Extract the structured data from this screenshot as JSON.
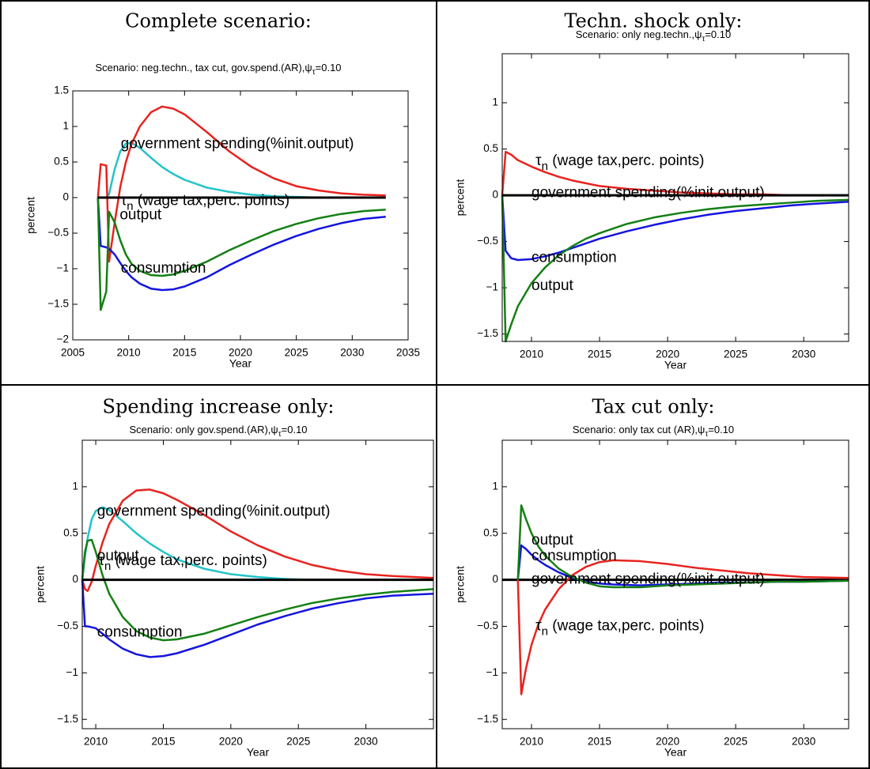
{
  "chart_data": [
    {
      "type": "line",
      "title": "Complete scenario:",
      "subtitle": {
        "text": "Scenario: neg.techn., tax cut, gov.spend.(AR),ψ",
        "subscript": "τ",
        "suffix": "=0.10"
      },
      "xlabel": "Year",
      "ylabel": "percent",
      "xlim": [
        2005,
        2035
      ],
      "xticks": [
        2005,
        2010,
        2015,
        2020,
        2025,
        2030,
        2035
      ],
      "ylim": [
        -2,
        1.5
      ],
      "yticks": [
        {
          "value": -2,
          "label": "−2"
        },
        {
          "value": -1.5,
          "label": "−1.5"
        },
        {
          "value": -1,
          "label": "−1"
        },
        {
          "value": -0.5,
          "label": "−0.5"
        },
        0,
        0.5,
        1,
        1.5
      ],
      "x": [
        2007.25,
        2007.5,
        2007.75,
        2008,
        2008.25,
        2008.75,
        2009.25,
        2009.75,
        2010.25,
        2011,
        2012,
        2013,
        2014,
        2015,
        2017,
        2019,
        2021,
        2023,
        2025,
        2027,
        2029,
        2031,
        2033
      ],
      "series": [
        {
          "color": "#22c3c8",
          "values": [
            0,
            0,
            0,
            0,
            0.05,
            0.4,
            0.65,
            0.76,
            0.77,
            0.7,
            0.56,
            0.43,
            0.33,
            0.25,
            0.14,
            0.08,
            0.04,
            0.02,
            0.01,
            0,
            0,
            0,
            0
          ]
        },
        {
          "color": "#e8231e",
          "values": [
            0,
            0.47,
            0.46,
            0.45,
            -0.9,
            -0.35,
            0.15,
            0.5,
            0.75,
            1.0,
            1.2,
            1.28,
            1.25,
            1.17,
            0.92,
            0.65,
            0.43,
            0.27,
            0.16,
            0.1,
            0.06,
            0.04,
            0.03
          ]
        },
        {
          "color": "#1414e0",
          "values": [
            0,
            -0.68,
            -0.69,
            -0.7,
            -0.72,
            -0.8,
            -0.92,
            -1.03,
            -1.12,
            -1.21,
            -1.28,
            -1.3,
            -1.29,
            -1.25,
            -1.12,
            -0.95,
            -0.8,
            -0.66,
            -0.54,
            -0.44,
            -0.36,
            -0.3,
            -0.27
          ]
        },
        {
          "color": "#148014",
          "values": [
            0,
            -1.58,
            -1.45,
            -1.32,
            -0.2,
            -0.35,
            -0.6,
            -0.8,
            -0.93,
            -1.03,
            -1.09,
            -1.1,
            -1.08,
            -1.03,
            -0.9,
            -0.74,
            -0.6,
            -0.47,
            -0.37,
            -0.29,
            -0.23,
            -0.19,
            -0.17
          ]
        },
        {
          "color": "#000000",
          "values": [
            0,
            0,
            0,
            0,
            0,
            0,
            0,
            0,
            0,
            0,
            0,
            0,
            0,
            0,
            0,
            0,
            0,
            0,
            0,
            0,
            0,
            0,
            0
          ]
        }
      ],
      "annotations": [
        {
          "text": "government spending(%init.output)",
          "x": 2009.3,
          "y": 0.75
        },
        {
          "text": "τ",
          "subscript": "n",
          "suffix": " (wage tax,perc. points)",
          "x": 2009.3,
          "y": -0.05
        },
        {
          "text": "output",
          "x": 2009.2,
          "y": -0.25
        },
        {
          "text": "consumption",
          "x": 2009.3,
          "y": -1.0
        }
      ]
    },
    {
      "type": "line",
      "title": "Techn. shock only:",
      "subtitle": {
        "text": "Scenario: only neg.techn.,ψ",
        "subscript": "τ",
        "suffix": "=0.10"
      },
      "xlabel": "Year",
      "ylabel": "percent",
      "xlim": [
        2007.85,
        2033.3
      ],
      "xticks": [
        2010,
        2015,
        2020,
        2025,
        2030
      ],
      "ylim": [
        -1.58,
        1.53
      ],
      "yticks": [
        {
          "value": -1.5,
          "label": "−1.5"
        },
        {
          "value": -1,
          "label": "−1"
        },
        {
          "value": -0.5,
          "label": "−0.5"
        },
        0,
        0.5,
        1
      ],
      "x": [
        2007.85,
        2008.1,
        2008.5,
        2009,
        2010,
        2011,
        2012,
        2013,
        2014,
        2015,
        2017,
        2019,
        2021,
        2023,
        2025,
        2027,
        2029,
        2031,
        2033.3
      ],
      "series": [
        {
          "color": "#e8231e",
          "values": [
            0,
            0.47,
            0.44,
            0.38,
            0.31,
            0.25,
            0.2,
            0.16,
            0.13,
            0.1,
            0.07,
            0.05,
            0.03,
            0.02,
            0.01,
            0.01,
            0,
            0,
            0
          ]
        },
        {
          "color": "#1414e0",
          "values": [
            0,
            -0.6,
            -0.68,
            -0.7,
            -0.69,
            -0.66,
            -0.62,
            -0.57,
            -0.52,
            -0.47,
            -0.39,
            -0.32,
            -0.26,
            -0.21,
            -0.17,
            -0.14,
            -0.11,
            -0.09,
            -0.07
          ]
        },
        {
          "color": "#148014",
          "values": [
            0,
            -1.58,
            -1.4,
            -1.2,
            -0.95,
            -0.78,
            -0.65,
            -0.55,
            -0.47,
            -0.41,
            -0.31,
            -0.24,
            -0.19,
            -0.15,
            -0.12,
            -0.1,
            -0.08,
            -0.06,
            -0.05
          ]
        },
        {
          "color": "#000000",
          "values": [
            0,
            0,
            0,
            0,
            0,
            0,
            0,
            0,
            0,
            0,
            0,
            0,
            0,
            0,
            0,
            0,
            0,
            0,
            0
          ]
        }
      ],
      "annotations": [
        {
          "text": "τ",
          "subscript": "n",
          "suffix": " (wage tax,perc. points)",
          "x": 2010.3,
          "y": 0.37
        },
        {
          "text": "government spending(%init.output)",
          "x": 2010,
          "y": 0.02
        },
        {
          "text": "consumption",
          "x": 2010,
          "y": -0.68
        },
        {
          "text": "output",
          "x": 2010,
          "y": -0.98
        }
      ]
    },
    {
      "type": "line",
      "title": "Spending increase only:",
      "subtitle": {
        "text": "Scenario: only gov.spend.(AR),ψ",
        "subscript": "τ",
        "suffix": "=0.10"
      },
      "xlabel": "Year",
      "ylabel": "percent",
      "xlim": [
        2009,
        2035
      ],
      "xticks": [
        2010,
        2015,
        2020,
        2025,
        2030
      ],
      "ylim": [
        -1.6,
        1.5
      ],
      "yticks": [
        {
          "value": -1.5,
          "label": "−1.5"
        },
        {
          "value": -1,
          "label": "−1"
        },
        {
          "value": -0.5,
          "label": "−0.5"
        },
        0,
        0.5,
        1
      ],
      "x": [
        2009,
        2009.2,
        2009.4,
        2009.7,
        2010,
        2010.5,
        2011,
        2012,
        2013,
        2014,
        2015,
        2016,
        2018,
        2020,
        2022,
        2024,
        2026,
        2028,
        2030,
        2032,
        2035
      ],
      "series": [
        {
          "color": "#22c3c8",
          "values": [
            0,
            0.25,
            0.45,
            0.65,
            0.74,
            0.78,
            0.75,
            0.63,
            0.5,
            0.39,
            0.3,
            0.22,
            0.12,
            0.06,
            0.03,
            0.01,
            0,
            0,
            0,
            0,
            0
          ]
        },
        {
          "color": "#e8231e",
          "values": [
            0,
            -0.1,
            -0.12,
            -0.02,
            0.15,
            0.4,
            0.6,
            0.85,
            0.96,
            0.97,
            0.93,
            0.86,
            0.7,
            0.52,
            0.37,
            0.25,
            0.16,
            0.1,
            0.06,
            0.04,
            0.02
          ]
        },
        {
          "color": "#148014",
          "values": [
            0,
            0.3,
            0.42,
            0.43,
            0.3,
            0.05,
            -0.15,
            -0.4,
            -0.55,
            -0.62,
            -0.65,
            -0.64,
            -0.58,
            -0.49,
            -0.4,
            -0.32,
            -0.25,
            -0.2,
            -0.16,
            -0.13,
            -0.1
          ]
        },
        {
          "color": "#1414e0",
          "values": [
            0,
            -0.5,
            -0.5,
            -0.51,
            -0.52,
            -0.58,
            -0.64,
            -0.74,
            -0.8,
            -0.83,
            -0.82,
            -0.79,
            -0.7,
            -0.59,
            -0.48,
            -0.39,
            -0.31,
            -0.25,
            -0.2,
            -0.17,
            -0.15
          ]
        },
        {
          "color": "#000000",
          "values": [
            0,
            0,
            0,
            0,
            0,
            0,
            0,
            0,
            0,
            0,
            0,
            0,
            0,
            0,
            0,
            0,
            0,
            0,
            0,
            0,
            0
          ]
        }
      ],
      "annotations": [
        {
          "text": "government spending(%init.output)",
          "x": 2010.1,
          "y": 0.73
        },
        {
          "text": "output",
          "x": 2010.1,
          "y": 0.25
        },
        {
          "text": "τ",
          "subscript": "n",
          "suffix": " (wage tax,perc. points)",
          "x": 2010.2,
          "y": 0.2
        },
        {
          "text": "consumption",
          "x": 2010.1,
          "y": -0.57
        }
      ]
    },
    {
      "type": "line",
      "title": "Tax cut only:",
      "subtitle": {
        "text": "Scenario: only tax cut (AR),ψ",
        "subscript": "τ",
        "suffix": "=0.10"
      },
      "xlabel": "Year",
      "ylabel": "percent",
      "xlim": [
        2007.85,
        2033.3
      ],
      "xticks": [
        2010,
        2015,
        2020,
        2025,
        2030
      ],
      "ylim": [
        -1.6,
        1.5
      ],
      "yticks": [
        {
          "value": -1.5,
          "label": "−1.5"
        },
        {
          "value": -1,
          "label": "−1"
        },
        {
          "value": -0.5,
          "label": "−0.5"
        },
        0,
        0.5,
        1
      ],
      "x": [
        2007.85,
        2009,
        2009.25,
        2009.6,
        2010,
        2010.5,
        2011,
        2012,
        2013,
        2014,
        2015,
        2016,
        2018,
        2020,
        2022,
        2024,
        2026,
        2028,
        2030,
        2033.3
      ],
      "series": [
        {
          "color": "#000000",
          "values": [
            0,
            0,
            0,
            0,
            0,
            0,
            0,
            0,
            0,
            0,
            0,
            0,
            0,
            0,
            0,
            0,
            0,
            0,
            0,
            0
          ]
        },
        {
          "color": "#e8231e",
          "values": [
            null,
            0,
            -1.23,
            -0.95,
            -0.7,
            -0.48,
            -0.32,
            -0.1,
            0.05,
            0.14,
            0.19,
            0.21,
            0.2,
            0.17,
            0.13,
            0.1,
            0.07,
            0.05,
            0.03,
            0.02
          ]
        },
        {
          "color": "#1414e0",
          "values": [
            null,
            0,
            0.37,
            0.33,
            0.27,
            0.21,
            0.16,
            0.08,
            0.02,
            -0.02,
            -0.04,
            -0.05,
            -0.06,
            -0.05,
            -0.04,
            -0.03,
            -0.03,
            -0.02,
            -0.02,
            -0.01
          ]
        },
        {
          "color": "#148014",
          "values": [
            null,
            0,
            0.8,
            0.65,
            0.5,
            0.36,
            0.26,
            0.12,
            0.03,
            -0.03,
            -0.07,
            -0.08,
            -0.08,
            -0.06,
            -0.05,
            -0.04,
            -0.03,
            -0.02,
            -0.02,
            -0.01
          ]
        }
      ],
      "annotations": [
        {
          "text": "output",
          "x": 2010,
          "y": 0.42
        },
        {
          "text": "consumption",
          "x": 2010,
          "y": 0.25
        },
        {
          "text": "government spending(%init.output)",
          "x": 2010,
          "y": 0.0
        },
        {
          "text": "τ",
          "subscript": "n",
          "suffix": " (wage tax,perc. points)",
          "x": 2010.3,
          "y": -0.5
        }
      ]
    }
  ]
}
